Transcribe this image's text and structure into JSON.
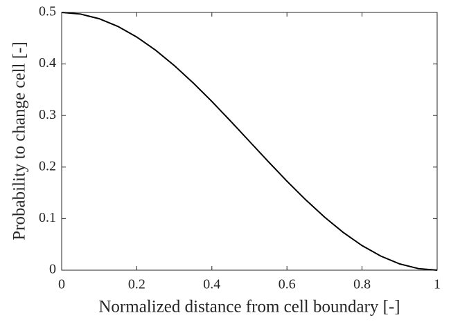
{
  "chart_data": {
    "type": "line",
    "xlabel": "Normalized distance from cell boundary [-]",
    "ylabel": "Probability to change cell [-]",
    "x": [
      0,
      0.05,
      0.1,
      0.15,
      0.2,
      0.25,
      0.3,
      0.35,
      0.4,
      0.45,
      0.5,
      0.55,
      0.6,
      0.65,
      0.7,
      0.75,
      0.8,
      0.85,
      0.9,
      0.95,
      1
    ],
    "series": [
      {
        "color": "#000000",
        "values": [
          0.5,
          0.4969,
          0.4878,
          0.4728,
          0.4523,
          0.4268,
          0.397,
          0.3635,
          0.3273,
          0.2891,
          0.25,
          0.2109,
          0.1727,
          0.1365,
          0.103,
          0.0732,
          0.0477,
          0.0273,
          0.0122,
          0.0031,
          0
        ]
      }
    ],
    "xlim": [
      0,
      1
    ],
    "xticks": [
      0,
      0.2,
      0.4,
      0.6,
      0.8,
      1
    ],
    "ylim": [
      0,
      0.5
    ],
    "yticks": [
      0,
      0.1,
      0.2,
      0.3,
      0.4,
      0.5
    ]
  }
}
